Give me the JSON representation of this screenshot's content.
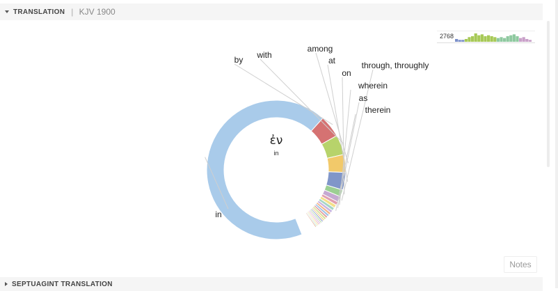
{
  "header": {
    "title": "TRANSLATION",
    "version": "KJV 1900"
  },
  "footer_section": {
    "title": "SEPTUAGINT TRANSLATION"
  },
  "sparkline": {
    "count": "2768",
    "colors": [
      "#7b8fc9",
      "#a7c957",
      "#8fc9a0",
      "#c9a0c9"
    ],
    "values": [
      3,
      2,
      2,
      3,
      5,
      6,
      9,
      7,
      8,
      6,
      7,
      6,
      5,
      4,
      5,
      4,
      6,
      7,
      8,
      6,
      4,
      5,
      3,
      2
    ]
  },
  "notes_button": "Notes",
  "center": {
    "word": "ἐν",
    "gloss": "in"
  },
  "chart_data": {
    "type": "pie",
    "donut": true,
    "slices": [
      {
        "label": "in",
        "value": 1874,
        "color": "#a9cbea"
      },
      {
        "label": "by",
        "value": 142,
        "color": "#d57272"
      },
      {
        "label": "with",
        "value": 128,
        "color": "#b7d36b"
      },
      {
        "label": "among",
        "value": 115,
        "color": "#f2c96a"
      },
      {
        "label": "at",
        "value": 113,
        "color": "#8096c9"
      },
      {
        "label": "on",
        "value": 45,
        "color": "#9ccf93"
      },
      {
        "label": "through, throughly",
        "value": 37,
        "color": "#c5a9d2"
      },
      {
        "label": "wherein",
        "value": 22,
        "color": "#e1a0b0"
      },
      {
        "label": "as",
        "value": 22,
        "color": "#f4e08a"
      },
      {
        "label": "therein",
        "value": 20,
        "color": "#a6d6c5"
      },
      {
        "label": "",
        "value": 18,
        "color": "#c8b6e2"
      },
      {
        "label": "",
        "value": 16,
        "color": "#f3b58a"
      },
      {
        "label": "",
        "value": 15,
        "color": "#9fc1e6"
      },
      {
        "label": "",
        "value": 14,
        "color": "#e3a0a0"
      },
      {
        "label": "",
        "value": 13,
        "color": "#cfe08f"
      },
      {
        "label": "",
        "value": 12,
        "color": "#f5d79a"
      },
      {
        "label": "",
        "value": 11,
        "color": "#a2b0d8"
      },
      {
        "label": "",
        "value": 10,
        "color": "#b8dfa8"
      },
      {
        "label": "",
        "value": 10,
        "color": "#d9c1e2"
      },
      {
        "label": "",
        "value": 9,
        "color": "#eab4c0"
      },
      {
        "label": "",
        "value": 9,
        "color": "#f6e8a6"
      },
      {
        "label": "",
        "value": 8,
        "color": "#bfe3d4"
      },
      {
        "label": "",
        "value": 8,
        "color": "#e0a88a"
      },
      {
        "label": "",
        "value": 96,
        "color": "#ffffff"
      }
    ]
  }
}
